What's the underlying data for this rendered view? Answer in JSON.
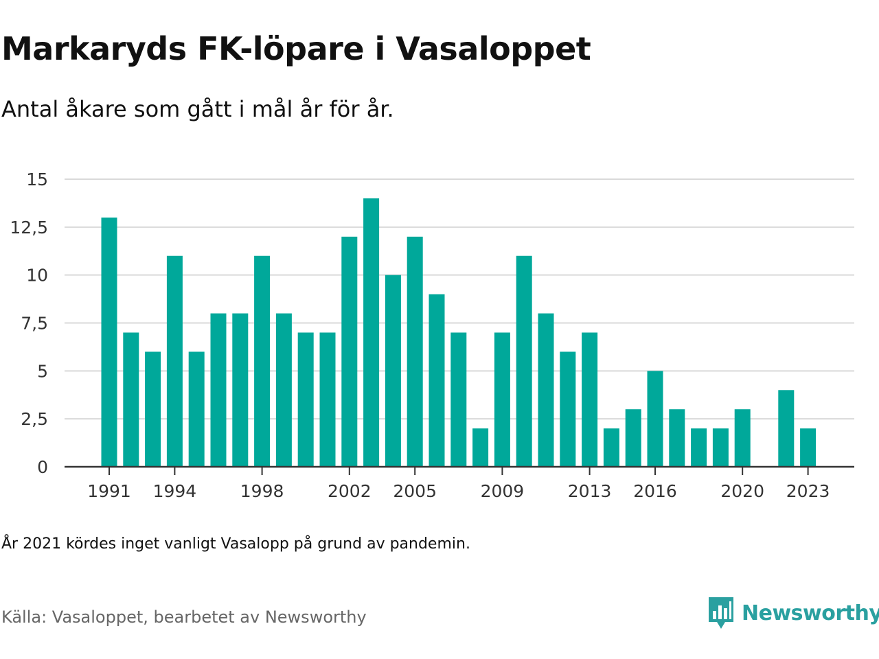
{
  "header": {
    "title": "Markaryds FK-löpare i Vasaloppet",
    "subtitle": "Antal åkare som gått i mål år för år."
  },
  "footer": {
    "note": "År 2021 kördes inget vanligt Vasalopp på grund av pandemin.",
    "source": "Källa: Vasaloppet, bearbetet av Newsworthy",
    "brand": "Newsworthy"
  },
  "colors": {
    "bar": "#00a89a",
    "grid": "#d9d9d9",
    "axis": "#333333",
    "brand": "#2aa0a0"
  },
  "icons": {
    "brand_logo": "newsworthy-logo-icon"
  },
  "chart_data": {
    "type": "bar",
    "x": [
      1991,
      1992,
      1993,
      1994,
      1995,
      1996,
      1997,
      1998,
      1999,
      2000,
      2001,
      2002,
      2003,
      2004,
      2005,
      2006,
      2007,
      2008,
      2009,
      2010,
      2011,
      2012,
      2013,
      2014,
      2015,
      2016,
      2017,
      2018,
      2019,
      2020,
      2021,
      2022,
      2023
    ],
    "values": [
      13,
      7,
      6,
      11,
      6,
      8,
      8,
      11,
      8,
      7,
      7,
      12,
      14,
      10,
      12,
      9,
      7,
      2,
      7,
      11,
      8,
      6,
      7,
      2,
      3,
      5,
      3,
      2,
      2,
      3,
      null,
      4,
      2
    ],
    "x_tick_labels": [
      "1991",
      "1994",
      "1998",
      "2002",
      "2005",
      "2009",
      "2013",
      "2016",
      "2020",
      "2023"
    ],
    "y_ticks": [
      0,
      2.5,
      5,
      7.5,
      10,
      12.5,
      15
    ],
    "y_tick_labels": [
      "0",
      "2,5",
      "5",
      "7,5",
      "10",
      "12,5",
      "15"
    ],
    "ylim": [
      0,
      15
    ],
    "grid": true,
    "legend": "none"
  }
}
